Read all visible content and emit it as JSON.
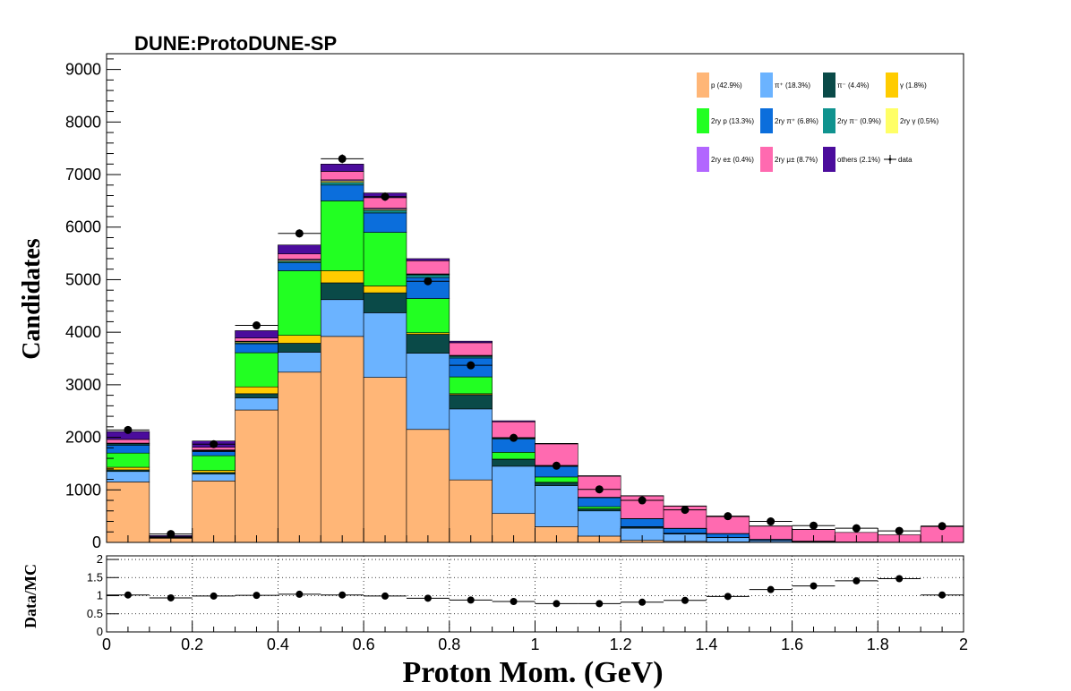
{
  "chart_data": [
    {
      "type": "bar",
      "stacked": true,
      "title": "DUNE:ProtoDUNE-SP",
      "xlabel": "Proton Mom. (GeV)",
      "ylabel": "Candidates",
      "xlim": [
        0,
        2
      ],
      "ylim": [
        0,
        9300
      ],
      "bin_edges": [
        0,
        0.1,
        0.2,
        0.3,
        0.4,
        0.5,
        0.6,
        0.7,
        0.8,
        0.9,
        1.0,
        1.1,
        1.2,
        1.3,
        1.4,
        1.5,
        1.6,
        1.7,
        1.8,
        1.9,
        2.0
      ],
      "x_ticks": [
        "0",
        "0.2",
        "0.4",
        "0.6",
        "0.8",
        "1",
        "1.2",
        "1.4",
        "1.6",
        "1.8",
        "2"
      ],
      "x_tick_values": [
        0,
        0.2,
        0.4,
        0.6,
        0.8,
        1.0,
        1.2,
        1.4,
        1.6,
        1.8,
        2.0
      ],
      "y_ticks": [
        "0",
        "1000",
        "2000",
        "3000",
        "4000",
        "5000",
        "6000",
        "7000",
        "8000",
        "9000"
      ],
      "y_tick_values": [
        0,
        1000,
        2000,
        3000,
        4000,
        5000,
        6000,
        7000,
        8000,
        9000
      ],
      "legend_position": "top-right",
      "series": [
        {
          "name": "p (42.9%)",
          "color": "#FFB677",
          "values": [
            1150,
            80,
            1170,
            2520,
            3240,
            3920,
            3140,
            2150,
            1190,
            550,
            300,
            120,
            40,
            20,
            10,
            5,
            0,
            0,
            0,
            0
          ]
        },
        {
          "name": "π⁺ (18.3%)",
          "color": "#6BB3FF",
          "values": [
            200,
            10,
            130,
            230,
            380,
            700,
            1230,
            1450,
            1350,
            900,
            780,
            480,
            230,
            140,
            80,
            30,
            15,
            5,
            0,
            0
          ]
        },
        {
          "name": "π⁻ (4.4%)",
          "color": "#0A4A48",
          "values": [
            30,
            0,
            30,
            80,
            170,
            320,
            380,
            360,
            270,
            130,
            60,
            40,
            20,
            10,
            5,
            5,
            0,
            0,
            0,
            0
          ]
        },
        {
          "name": "γ (1.8%)",
          "color": "#FFCC00",
          "values": [
            50,
            0,
            40,
            130,
            150,
            230,
            130,
            30,
            20,
            5,
            5,
            0,
            0,
            0,
            0,
            0,
            0,
            0,
            0,
            0
          ]
        },
        {
          "name": "2ry p (13.3%)",
          "color": "#22FF22",
          "values": [
            270,
            0,
            280,
            650,
            1230,
            1330,
            1020,
            650,
            320,
            130,
            100,
            40,
            10,
            5,
            0,
            0,
            0,
            0,
            0,
            0
          ]
        },
        {
          "name": "2ry π⁺ (6.8%)",
          "color": "#0B6EDC",
          "values": [
            150,
            10,
            80,
            170,
            150,
            300,
            370,
            400,
            360,
            250,
            200,
            170,
            150,
            90,
            70,
            20,
            10,
            5,
            5,
            0
          ]
        },
        {
          "name": "2ry π⁻ (0.9%)",
          "color": "#10938F",
          "values": [
            20,
            0,
            10,
            20,
            30,
            50,
            50,
            50,
            30,
            20,
            10,
            10,
            5,
            5,
            5,
            0,
            0,
            0,
            0,
            0
          ]
        },
        {
          "name": "2ry γ (0.5%)",
          "color": "#FFFF66",
          "values": [
            10,
            0,
            10,
            20,
            20,
            30,
            20,
            10,
            10,
            5,
            5,
            0,
            0,
            0,
            0,
            0,
            0,
            0,
            0,
            0
          ]
        },
        {
          "name": "2ry e± (0.4%)",
          "color": "#B266FF",
          "values": [
            10,
            0,
            10,
            10,
            20,
            20,
            20,
            10,
            10,
            5,
            5,
            0,
            0,
            0,
            0,
            0,
            0,
            0,
            0,
            0
          ]
        },
        {
          "name": "2ry μ± (8.7%)",
          "color": "#FF6AB0",
          "values": [
            70,
            10,
            50,
            60,
            100,
            160,
            200,
            250,
            240,
            300,
            410,
            400,
            430,
            420,
            320,
            250,
            220,
            180,
            140,
            300
          ]
        },
        {
          "name": "others (2.1%)",
          "color": "#4B0C9C",
          "values": [
            150,
            20,
            120,
            140,
            170,
            140,
            90,
            40,
            30,
            20,
            10,
            10,
            5,
            5,
            5,
            5,
            5,
            0,
            0,
            0
          ]
        }
      ],
      "data": {
        "name": "data",
        "values": [
          2140,
          160,
          1870,
          4130,
          5880,
          7300,
          6580,
          4970,
          3370,
          1990,
          1460,
          1010,
          800,
          620,
          500,
          400,
          320,
          270,
          220,
          310
        ]
      }
    },
    {
      "type": "scatter",
      "ylabel": "Data/MC",
      "xlim": [
        0,
        2
      ],
      "ylim": [
        0,
        2.1
      ],
      "y_ticks": [
        "0",
        "0.5",
        "1",
        "1.5",
        "2"
      ],
      "y_tick_values": [
        0,
        0.5,
        1,
        1.5,
        2
      ],
      "grid": true,
      "ratio": [
        1.02,
        0.94,
        0.99,
        1.01,
        1.04,
        1.02,
        0.99,
        0.93,
        0.88,
        0.84,
        0.78,
        0.78,
        0.82,
        0.87,
        0.98,
        1.17,
        1.27,
        1.41,
        1.47,
        1.02
      ]
    }
  ]
}
